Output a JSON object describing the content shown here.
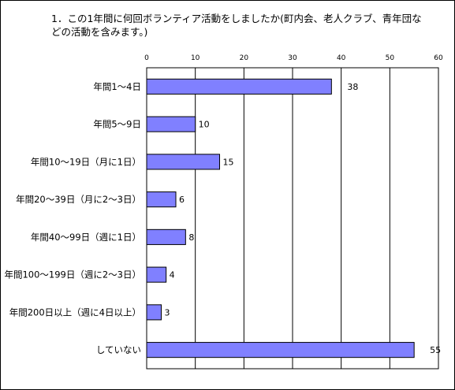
{
  "title": "1．この1年間に何回ボランティア活動をしましたか(町内会、老人クラブ、青年団などの活動を含みます。)",
  "chart_data": {
    "type": "bar",
    "orientation": "horizontal",
    "title": "1．この1年間に何回ボランティア活動をしましたか(町内会、老人クラブ、青年団などの活動を含みます。)",
    "categories": [
      "年間1～4日",
      "年間5～9日",
      "年間10～19日（月に1日）",
      "年間20～39日（月に2～3日）",
      "年間40～99日（週に1日）",
      "年間100～199日（週に2～3日）",
      "年間200日以上（週に4日以上）",
      "していない"
    ],
    "values": [
      38,
      10,
      15,
      6,
      8,
      4,
      3,
      55
    ],
    "xlim": [
      0,
      60
    ],
    "xticks": [
      0,
      10,
      20,
      30,
      40,
      50,
      60
    ],
    "tick_position": "top",
    "grid": "vertical",
    "bar_color": "#8080ff",
    "legend": "none"
  }
}
